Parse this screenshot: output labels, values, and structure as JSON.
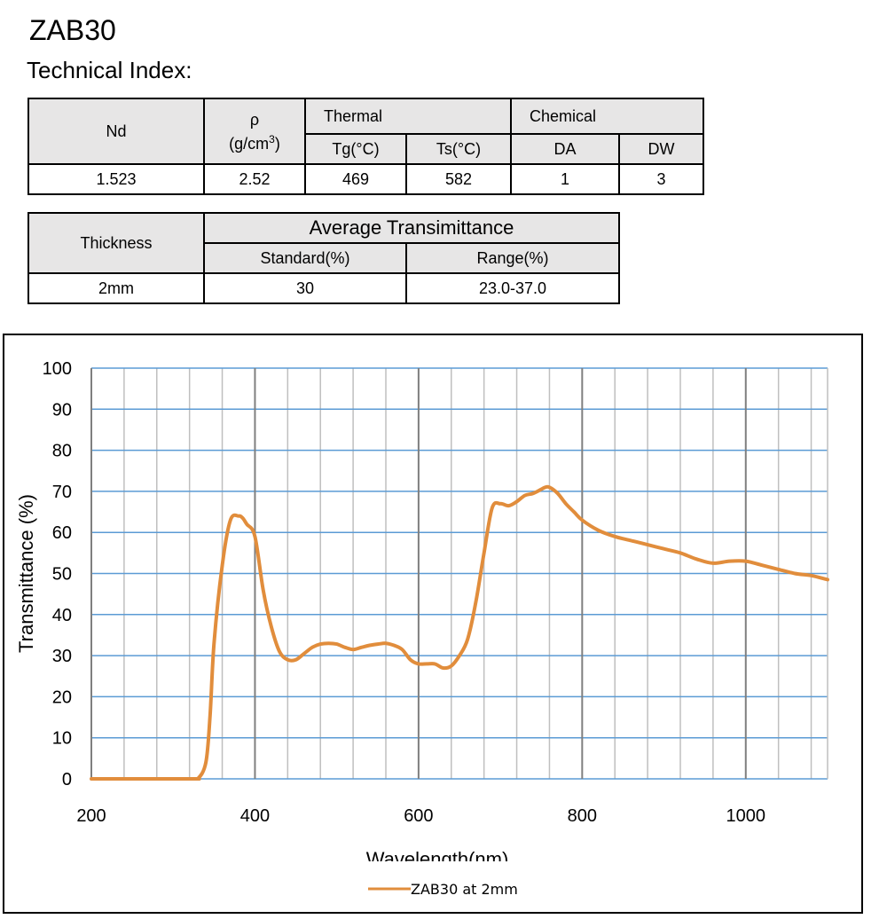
{
  "header": {
    "product": "ZAB30",
    "section": "Technical Index:"
  },
  "properties_table": {
    "nd_label": "Nd",
    "rho_symbol": "ρ",
    "rho_unit_prefix": "(g/cm",
    "rho_unit_exp": "3",
    "rho_unit_suffix": ")",
    "thermal_label": "Thermal",
    "chemical_label": "Chemical",
    "tg_label": "Tg(°C)",
    "ts_label": "Ts(°C)",
    "da_label": "DA",
    "dw_label": "DW",
    "values": {
      "nd": "1.523",
      "rho": "2.52",
      "tg": "469",
      "ts": "582",
      "da": "1",
      "dw": "3"
    }
  },
  "transmittance_table": {
    "thickness_label": "Thickness",
    "avg_label": "Average Transimittance",
    "standard_label": "Standard(%)",
    "range_label": "Range(%)",
    "values": {
      "thickness": "2mm",
      "standard": "30",
      "range": "23.0-37.0"
    }
  },
  "colors": {
    "series": "#e18d3c",
    "major_grid": "#7f7f7f",
    "minor_grid": "#bfbfbf",
    "h_grid": "#5b9bd5",
    "header_fill": "#e7e6e6"
  },
  "chart_data": {
    "type": "line",
    "title": "",
    "xlabel": "Wavelength(nm)",
    "ylabel": "Transmittance (%)",
    "xlim": [
      200,
      1100
    ],
    "ylim": [
      0,
      100
    ],
    "xticks": [
      200,
      400,
      600,
      800,
      1000
    ],
    "yticks": [
      0,
      10,
      20,
      30,
      40,
      50,
      60,
      70,
      80,
      90,
      100
    ],
    "grid": true,
    "legend_position": "bottom",
    "series": [
      {
        "name": "ZAB30 at 2mm",
        "x": [
          200,
          320,
          330,
          340,
          345,
          350,
          360,
          370,
          380,
          385,
          390,
          400,
          410,
          420,
          430,
          440,
          450,
          460,
          470,
          480,
          490,
          500,
          510,
          520,
          530,
          540,
          550,
          560,
          570,
          580,
          590,
          600,
          610,
          620,
          630,
          640,
          650,
          660,
          670,
          680,
          690,
          700,
          710,
          720,
          730,
          740,
          750,
          755,
          760,
          770,
          780,
          790,
          800,
          820,
          840,
          860,
          880,
          900,
          920,
          940,
          960,
          980,
          1000,
          1020,
          1040,
          1060,
          1080,
          1100
        ],
        "y": [
          0,
          0,
          0,
          4,
          15,
          33,
          52,
          63,
          64,
          63.5,
          62,
          59,
          46,
          37,
          31,
          29,
          29,
          30.5,
          32,
          32.8,
          33,
          32.8,
          32,
          31.5,
          32,
          32.5,
          32.8,
          33,
          32.5,
          31.5,
          29,
          28,
          28,
          28,
          27,
          27.5,
          30,
          34,
          43,
          55,
          66,
          67,
          66.5,
          67.5,
          69,
          69.5,
          70.5,
          71,
          71,
          69.5,
          67,
          65,
          63,
          60.5,
          59,
          58,
          57,
          56,
          55,
          53.5,
          52.5,
          53,
          53,
          52,
          51,
          50,
          49.5,
          48.5
        ]
      }
    ]
  }
}
